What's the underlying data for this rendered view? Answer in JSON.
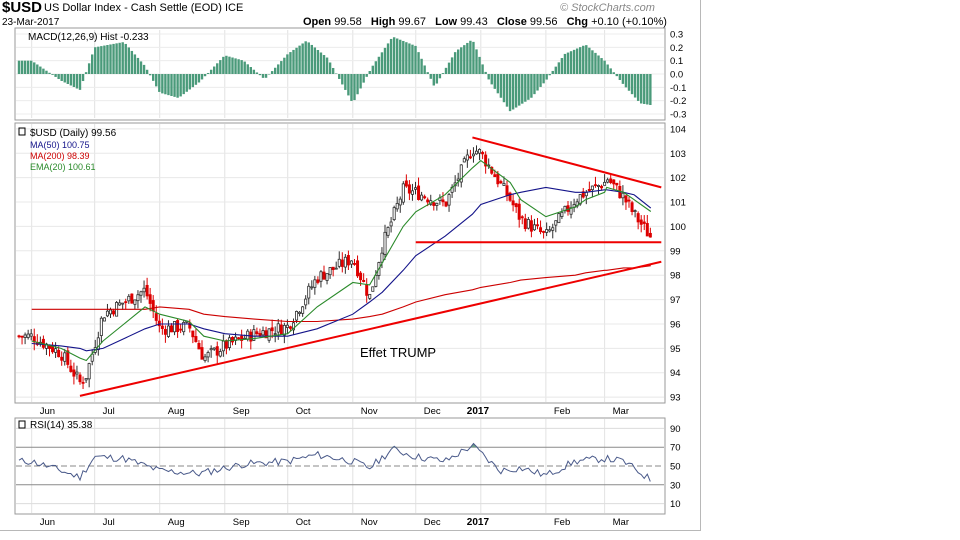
{
  "header": {
    "symbol": "$USD",
    "name": "US Dollar Index - Cash Settle (EOD)",
    "exchange": "ICE",
    "date": "23-Mar-2017",
    "open_label": "Open",
    "open": "99.58",
    "high_label": "High",
    "high": "99.67",
    "low_label": "Low",
    "low": "99.43",
    "close_label": "Close",
    "close": "99.56",
    "chg_label": "Chg",
    "chg": "+0.10 (+0.10%)",
    "brand": "© StockCharts.com"
  },
  "panels": {
    "macd": {
      "label": "MACD(12,26,9) Hist -0.233",
      "ticks": [
        "0.3",
        "0.2",
        "0.1",
        "0.0",
        "-0.1",
        "-0.2",
        "-0.3"
      ]
    },
    "price": {
      "label": "$USD (Daily) 99.56",
      "ma50": "MA(50) 100.75",
      "ma200": "MA(200) 98.39",
      "ema20": "EMA(20) 100.61",
      "ticks": [
        "104",
        "103",
        "102",
        "101",
        "100",
        "99",
        "98",
        "97",
        "96",
        "95",
        "94",
        "93"
      ],
      "annotation": "Effet TRUMP"
    },
    "rsi": {
      "label": "RSI(14) 35.38",
      "ticks": [
        "90",
        "70",
        "50",
        "30",
        "10"
      ]
    }
  },
  "x_axis": [
    "Jun",
    "Jul",
    "Aug",
    "Sep",
    "Oct",
    "Nov",
    "Dec",
    "2017",
    "Feb",
    "Mar"
  ],
  "colors": {
    "up": "#2e2e2e",
    "down": "#dd0000",
    "ma50": "#14148a",
    "ma200": "#cc0000",
    "ema20": "#2a8a2a",
    "trend": "#ee0000",
    "hist": "#4a9a7a",
    "rsi": "#4a5a8a"
  },
  "chart_data": [
    {
      "type": "line",
      "title": "$USD (Daily) 99.56",
      "ylim": [
        92.8,
        104.2
      ],
      "x": [
        "2016-06-01",
        "2016-06-15",
        "2016-06-24",
        "2016-06-27",
        "2016-07-05",
        "2016-07-15",
        "2016-07-25",
        "2016-08-01",
        "2016-08-15",
        "2016-08-22",
        "2016-09-01",
        "2016-09-15",
        "2016-10-01",
        "2016-10-15",
        "2016-11-01",
        "2016-11-09",
        "2016-11-15",
        "2016-11-25",
        "2016-12-01",
        "2016-12-15",
        "2016-12-28",
        "2017-01-01",
        "2017-01-15",
        "2017-01-20",
        "2017-02-01",
        "2017-02-15",
        "2017-02-20",
        "2017-03-01",
        "2017-03-02",
        "2017-03-10",
        "2017-03-15",
        "2017-03-23"
      ],
      "series": [
        {
          "name": "$USD (Daily) 99.56",
          "values": [
            95.5,
            94.8,
            93.6,
            93.9,
            96.4,
            96.9,
            97.4,
            95.8,
            95.9,
            94.6,
            95.1,
            95.6,
            95.9,
            97.9,
            98.7,
            97.1,
            99.2,
            101.5,
            101.4,
            100.9,
            103.2,
            103.0,
            101.1,
            100.3,
            99.6,
            101.1,
            101.4,
            101.8,
            102.0,
            101.2,
            100.5,
            99.56
          ]
        },
        {
          "name": "MA(50) 100.75",
          "values": [
            95.2,
            95.1,
            95.0,
            94.9,
            95.0,
            95.4,
            95.8,
            96.0,
            96.0,
            95.8,
            95.6,
            95.5,
            95.5,
            95.8,
            96.4,
            96.9,
            97.3,
            98.2,
            98.8,
            99.6,
            100.5,
            100.9,
            101.3,
            101.4,
            101.6,
            101.4,
            101.4,
            101.5,
            101.5,
            101.4,
            101.3,
            100.75
          ]
        },
        {
          "name": "MA(200) 98.39",
          "values": [
            96.6,
            96.6,
            96.6,
            96.6,
            96.6,
            96.6,
            96.6,
            96.7,
            96.6,
            96.4,
            96.3,
            96.2,
            96.1,
            96.1,
            96.2,
            96.3,
            96.4,
            96.7,
            96.9,
            97.2,
            97.4,
            97.5,
            97.7,
            97.8,
            97.9,
            98.0,
            98.1,
            98.2,
            98.2,
            98.3,
            98.3,
            98.39
          ]
        },
        {
          "name": "EMA(20) 100.61",
          "values": [
            95.3,
            95.0,
            94.6,
            94.5,
            95.3,
            96.0,
            96.7,
            96.4,
            96.1,
            95.5,
            95.3,
            95.4,
            95.6,
            96.7,
            97.7,
            97.6,
            98.5,
            100.0,
            100.6,
            101.3,
            102.4,
            102.7,
            101.8,
            101.1,
            100.4,
            100.8,
            101.1,
            101.4,
            101.6,
            101.4,
            101.1,
            100.61
          ]
        }
      ]
    },
    {
      "type": "bar",
      "title": "MACD(12,26,9) Hist -0.233",
      "ylim": [
        -0.33,
        0.33
      ],
      "x": [
        "2016-06-01",
        "2016-06-15",
        "2016-06-24",
        "2016-07-01",
        "2016-07-15",
        "2016-07-25",
        "2016-08-01",
        "2016-08-10",
        "2016-08-20",
        "2016-09-01",
        "2016-09-10",
        "2016-09-20",
        "2016-10-01",
        "2016-10-10",
        "2016-10-20",
        "2016-11-01",
        "2016-11-10",
        "2016-11-20",
        "2016-12-01",
        "2016-12-10",
        "2016-12-20",
        "2016-12-28",
        "2017-01-05",
        "2017-01-15",
        "2017-01-25",
        "2017-02-01",
        "2017-02-10",
        "2017-02-20",
        "2017-03-01",
        "2017-03-10",
        "2017-03-18",
        "2017-03-23"
      ],
      "values": [
        0.1,
        -0.05,
        -0.12,
        0.2,
        0.24,
        0.06,
        -0.14,
        -0.18,
        -0.06,
        0.14,
        0.1,
        -0.04,
        0.15,
        0.25,
        0.12,
        -0.22,
        0.05,
        0.28,
        0.21,
        -0.1,
        0.17,
        0.26,
        -0.05,
        -0.28,
        -0.18,
        -0.05,
        0.15,
        0.22,
        0.1,
        -0.08,
        -0.22,
        -0.233
      ]
    },
    {
      "type": "line",
      "title": "RSI(14) 35.38",
      "ylim": [
        0,
        100
      ],
      "x": [
        "2016-06-01",
        "2016-06-15",
        "2016-06-24",
        "2016-07-01",
        "2016-07-15",
        "2016-08-01",
        "2016-08-20",
        "2016-09-10",
        "2016-10-01",
        "2016-10-15",
        "2016-11-01",
        "2016-11-09",
        "2016-11-20",
        "2016-12-01",
        "2016-12-15",
        "2016-12-28",
        "2017-01-10",
        "2017-01-20",
        "2017-02-01",
        "2017-02-15",
        "2017-03-01",
        "2017-03-10",
        "2017-03-23"
      ],
      "values": [
        55,
        45,
        38,
        60,
        58,
        45,
        42,
        52,
        55,
        62,
        55,
        48,
        68,
        60,
        55,
        72,
        45,
        48,
        40,
        55,
        58,
        55,
        35.38
      ]
    }
  ]
}
